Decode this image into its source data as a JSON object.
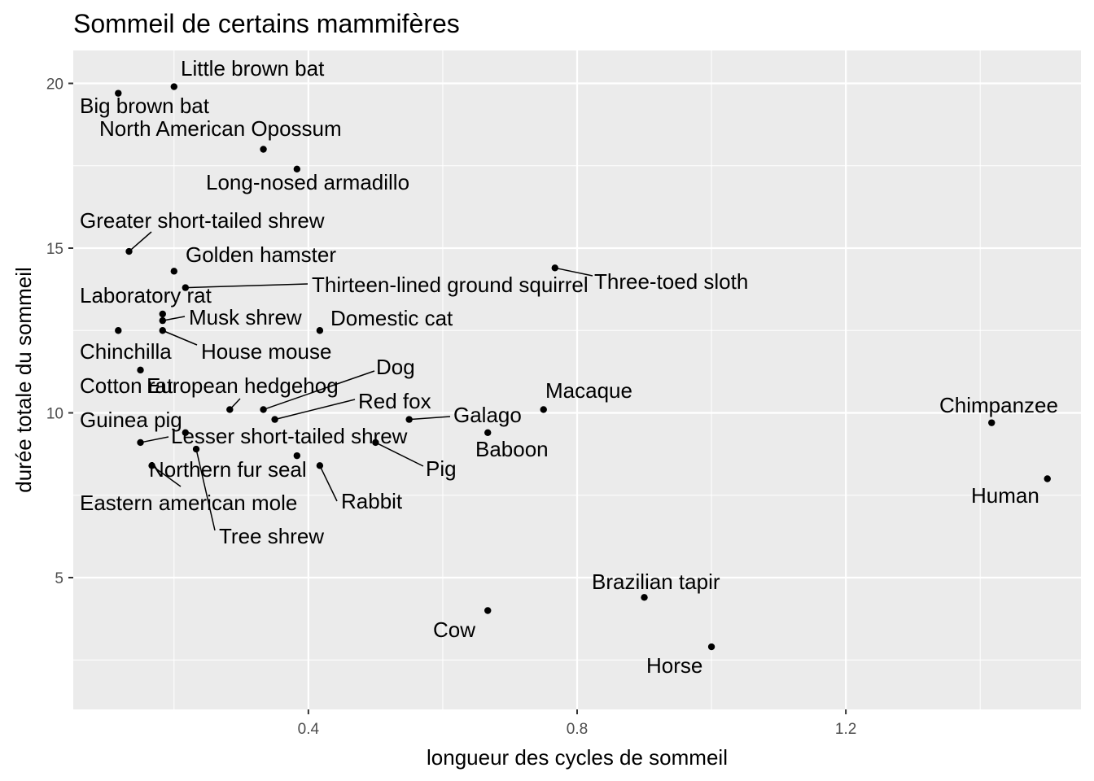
{
  "chart_data": {
    "type": "scatter",
    "title": "Sommeil de certains mammifères",
    "xlabel": "longueur des cycles de sommeil",
    "ylabel": "durée totale du sommeil",
    "xlim": [
      0.05,
      1.55
    ],
    "ylim": [
      1.0,
      21.0
    ],
    "xticks": [
      0.4,
      0.8,
      1.2
    ],
    "xtick_labels": [
      "0.4",
      "0.8",
      "1.2"
    ],
    "yticks": [
      5,
      10,
      15,
      20
    ],
    "ytick_labels": [
      "5",
      "10",
      "15",
      "20"
    ],
    "grid": true,
    "legend": "none",
    "points": [
      {
        "label": "Little brown bat",
        "x": 0.2,
        "y": 19.9
      },
      {
        "label": "Big brown bat",
        "x": 0.117,
        "y": 19.7
      },
      {
        "label": "North American Opossum",
        "x": 0.333,
        "y": 18.0
      },
      {
        "label": "Long-nosed armadillo",
        "x": 0.383,
        "y": 17.4
      },
      {
        "label": "Greater short-tailed shrew",
        "x": 0.133,
        "y": 14.9
      },
      {
        "label": "Golden hamster",
        "x": 0.2,
        "y": 14.3
      },
      {
        "label": "Thirteen-lined ground squirrel",
        "x": 0.217,
        "y": 13.8
      },
      {
        "label": "Three-toed sloth",
        "x": 0.767,
        "y": 14.4
      },
      {
        "label": "Laboratory rat",
        "x": 0.183,
        "y": 13.0
      },
      {
        "label": "Musk shrew",
        "x": 0.183,
        "y": 12.8
      },
      {
        "label": "House mouse",
        "x": 0.183,
        "y": 12.5
      },
      {
        "label": "Chinchilla",
        "x": 0.117,
        "y": 12.5
      },
      {
        "label": "Domestic cat",
        "x": 0.417,
        "y": 12.5
      },
      {
        "label": "Cotton rat",
        "x": 0.15,
        "y": 11.3
      },
      {
        "label": "Dog",
        "x": 0.333,
        "y": 10.1
      },
      {
        "label": "European hedgehog",
        "x": 0.283,
        "y": 10.1
      },
      {
        "label": "Red fox",
        "x": 0.35,
        "y": 9.8
      },
      {
        "label": "Galago",
        "x": 0.55,
        "y": 9.8
      },
      {
        "label": "Macaque",
        "x": 0.75,
        "y": 10.1
      },
      {
        "label": "Baboon",
        "x": 0.667,
        "y": 9.4
      },
      {
        "label": "Chimpanzee",
        "x": 1.417,
        "y": 9.7
      },
      {
        "label": "Human",
        "x": 1.5,
        "y": 8.0
      },
      {
        "label": "Guinea pig",
        "x": 0.217,
        "y": 9.4
      },
      {
        "label": "Lesser short-tailed shrew",
        "x": 0.15,
        "y": 9.1
      },
      {
        "label": "Pig",
        "x": 0.5,
        "y": 9.1
      },
      {
        "label": "Tree shrew",
        "x": 0.233,
        "y": 8.9
      },
      {
        "label": "Northern fur seal",
        "x": 0.383,
        "y": 8.7
      },
      {
        "label": "Eastern american mole",
        "x": 0.167,
        "y": 8.4
      },
      {
        "label": "Rabbit",
        "x": 0.417,
        "y": 8.4
      },
      {
        "label": "Brazilian tapir",
        "x": 0.9,
        "y": 4.4
      },
      {
        "label": "Cow",
        "x": 0.667,
        "y": 4.0
      },
      {
        "label": "Horse",
        "x": 1.0,
        "y": 2.9
      }
    ]
  }
}
